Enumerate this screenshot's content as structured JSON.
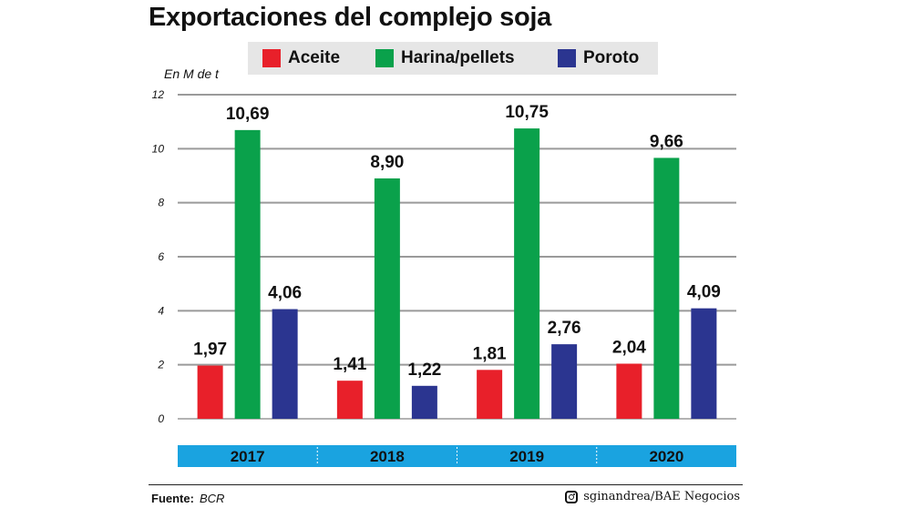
{
  "title": "Exportaciones del complejo soja",
  "unit_label": "En M de t",
  "legend": [
    {
      "label": "Aceite",
      "color": "#e8202a"
    },
    {
      "label": "Harina/pellets",
      "color": "#0aa14b"
    },
    {
      "label": "Poroto",
      "color": "#2b3590"
    }
  ],
  "chart_data": {
    "type": "bar",
    "categories": [
      "2017",
      "2018",
      "2019",
      "2020"
    ],
    "series": [
      {
        "name": "Aceite",
        "values": [
          1.97,
          1.41,
          1.81,
          2.04
        ],
        "labels": [
          "1,97",
          "1,41",
          "1,81",
          "2,04"
        ],
        "color": "#e8202a"
      },
      {
        "name": "Harina/pellets",
        "values": [
          10.69,
          8.9,
          10.75,
          9.66
        ],
        "labels": [
          "10,69",
          "8,90",
          "10,75",
          "9,66"
        ],
        "color": "#0aa14b"
      },
      {
        "name": "Poroto",
        "values": [
          4.06,
          1.22,
          2.76,
          4.09
        ],
        "labels": [
          "4,06",
          "1,22",
          "2,76",
          "4,09"
        ],
        "color": "#2b3590"
      }
    ],
    "y_ticks": [
      "0",
      "2",
      "4",
      "6",
      "8",
      "10",
      "12"
    ],
    "ylim": [
      0,
      12
    ],
    "ylabel": "En M de t",
    "grid": true,
    "legend_position": "top",
    "category_band_color": "#1aa3e0"
  },
  "footer": {
    "source_label": "Fuente:",
    "source_value": "BCR",
    "credit": "sginandrea/BAE Negocios",
    "credit_icon": "instagram-icon"
  }
}
